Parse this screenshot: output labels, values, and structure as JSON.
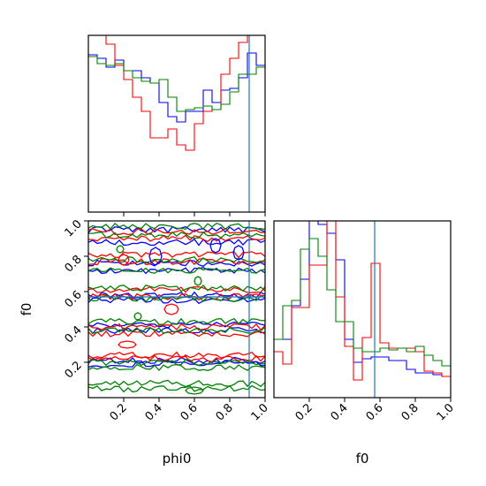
{
  "chart_data": {
    "type": "corner",
    "colors": {
      "blue": "#0000ff",
      "red": "#ff0000",
      "green": "#008000",
      "truth": "#1f77b4"
    },
    "parameters": [
      "phi0",
      "f0"
    ],
    "labels": {
      "phi0": "phi0",
      "f0": "f0"
    },
    "truths": {
      "phi0": 0.91,
      "f0": 0.57
    },
    "ticks": {
      "phi0": [
        "0.2",
        "0.4",
        "0.6",
        "0.8",
        "1.0"
      ],
      "f0": [
        "0.2",
        "0.4",
        "0.6",
        "0.8",
        "1.0"
      ],
      "f0_2d_y": [
        "0.2",
        "0.4",
        "0.6",
        "0.8",
        "1.0"
      ]
    },
    "limits": {
      "phi0": [
        0.0,
        1.0
      ],
      "f0": [
        0.0,
        1.0
      ]
    },
    "hist_phi0": {
      "bins": 20,
      "ylim": [
        0,
        1
      ],
      "series": [
        {
          "color": "blue",
          "values": [
            0.89,
            0.87,
            0.82,
            0.86,
            0.8,
            0.8,
            0.76,
            0.73,
            0.62,
            0.54,
            0.51,
            0.57,
            0.57,
            0.69,
            0.62,
            0.69,
            0.7,
            0.76,
            0.9,
            0.83
          ]
        },
        {
          "color": "red",
          "values": [
            1.0,
            1.0,
            0.95,
            0.83,
            0.75,
            0.65,
            0.57,
            0.42,
            0.42,
            0.47,
            0.38,
            0.35,
            0.5,
            0.57,
            0.58,
            0.78,
            0.87,
            0.96,
            1.0,
            1.0
          ]
        },
        {
          "color": "green",
          "values": [
            0.88,
            0.84,
            0.83,
            0.84,
            0.8,
            0.76,
            0.74,
            0.73,
            0.75,
            0.65,
            0.57,
            0.58,
            0.59,
            0.6,
            0.58,
            0.61,
            0.68,
            0.78,
            0.78,
            0.82
          ]
        }
      ]
    },
    "hist_f0": {
      "bins": 20,
      "ylim": [
        0,
        1
      ],
      "series": [
        {
          "color": "blue",
          "values": [
            0.33,
            0.33,
            0.52,
            0.67,
            1.0,
            0.98,
            0.93,
            0.78,
            0.33,
            0.2,
            0.22,
            0.23,
            0.23,
            0.21,
            0.21,
            0.16,
            0.14,
            0.14,
            0.13,
            0.12
          ]
        },
        {
          "color": "red",
          "values": [
            0.26,
            0.19,
            0.51,
            0.51,
            0.75,
            0.75,
            1.0,
            0.57,
            0.29,
            0.1,
            0.34,
            0.76,
            0.31,
            0.28,
            0.28,
            0.28,
            0.26,
            0.15,
            0.14,
            0.12
          ]
        },
        {
          "color": "green",
          "values": [
            0.33,
            0.52,
            0.55,
            0.84,
            0.9,
            0.8,
            0.61,
            0.43,
            0.43,
            0.28,
            0.26,
            0.26,
            0.28,
            0.27,
            0.28,
            0.26,
            0.29,
            0.24,
            0.21,
            0.18
          ]
        }
      ]
    },
    "contour_bands": [
      {
        "color": "blue",
        "f0": [
          0.19,
          0.21,
          0.38,
          0.41,
          0.55,
          0.58,
          0.72,
          0.76,
          0.88,
          0.95
        ]
      },
      {
        "color": "red",
        "f0": [
          0.22,
          0.24,
          0.36,
          0.4,
          0.57,
          0.61,
          0.77,
          0.81,
          0.9,
          0.94
        ]
      },
      {
        "color": "green",
        "f0": [
          0.05,
          0.08,
          0.17,
          0.2,
          0.38,
          0.43,
          0.56,
          0.62,
          0.72,
          0.78,
          0.92,
          0.97
        ]
      }
    ],
    "contour_blobs": [
      {
        "color": "blue",
        "phi0": 0.38,
        "f0": 0.8,
        "r": [
          0.035,
          0.05
        ]
      },
      {
        "color": "blue",
        "phi0": 0.72,
        "f0": 0.86,
        "r": [
          0.03,
          0.04
        ]
      },
      {
        "color": "blue",
        "phi0": 0.85,
        "f0": 0.82,
        "r": [
          0.03,
          0.04
        ]
      },
      {
        "color": "red",
        "phi0": 0.2,
        "f0": 0.78,
        "r": [
          0.03,
          0.03
        ]
      },
      {
        "color": "red",
        "phi0": 0.47,
        "f0": 0.5,
        "r": [
          0.04,
          0.03
        ]
      },
      {
        "color": "red",
        "phi0": 0.22,
        "f0": 0.3,
        "r": [
          0.05,
          0.02
        ]
      },
      {
        "color": "green",
        "phi0": 0.18,
        "f0": 0.84,
        "r": [
          0.02,
          0.02
        ]
      },
      {
        "color": "green",
        "phi0": 0.62,
        "f0": 0.66,
        "r": [
          0.02,
          0.025
        ]
      },
      {
        "color": "green",
        "phi0": 0.28,
        "f0": 0.46,
        "r": [
          0.02,
          0.02
        ]
      },
      {
        "color": "green",
        "phi0": 0.6,
        "f0": 0.04,
        "r": [
          0.05,
          0.02
        ]
      }
    ]
  }
}
